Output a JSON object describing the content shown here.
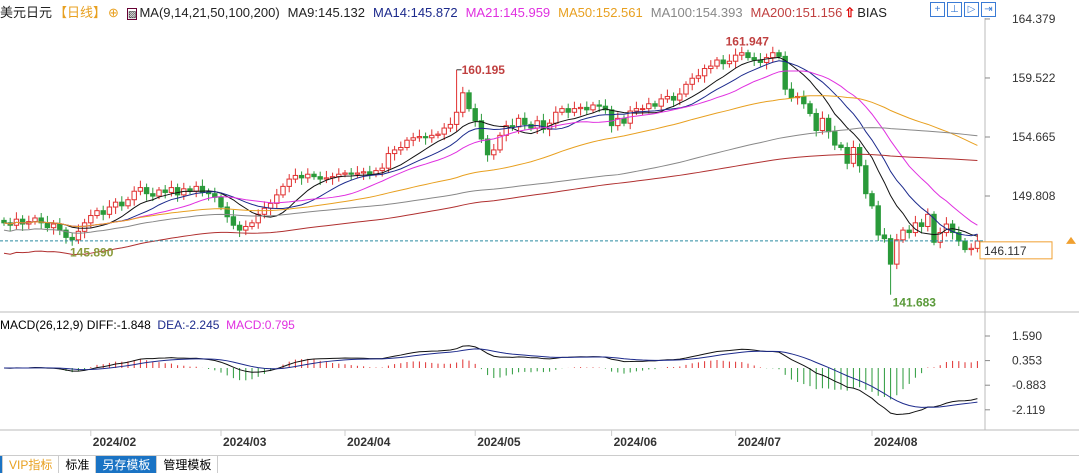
{
  "header": {
    "symbol": "美元日元",
    "period": "【日线】",
    "ma_params": "MA(9,14,21,50,100,200)",
    "ma9": "MA9:145.132",
    "ma14": "MA14:145.872",
    "ma21": "MA21:145.959",
    "ma50": "MA50:152.561",
    "ma100": "MA100:154.393",
    "ma200": "MA200:151.156",
    "bias": "BIAS"
  },
  "macd_header": {
    "params": "MACD(26,12,9)",
    "diff": "DIFF:-1.848",
    "dea": "DEA:-2.245",
    "macd": "MACD:0.795"
  },
  "tabs": [
    "VIP指标",
    "标准",
    "另存模板",
    "管理模板"
  ],
  "colors": {
    "ma9": "#111111",
    "ma14": "#1c2a8c",
    "ma21": "#e030e0",
    "ma50": "#e8a020",
    "ma100": "#888888",
    "ma200": "#b03030",
    "up": "#e03030",
    "down": "#2a9a3a"
  },
  "chart_data": {
    "type": "candlestick",
    "title": "美元日元 日线",
    "price_ticks": [
      "164.379",
      "159.522",
      "154.665",
      "149.808"
    ],
    "ylim": [
      139.5,
      165.5
    ],
    "current_price": "146.117",
    "annotations": {
      "high1": "160.195",
      "high2": "161.947",
      "low1": "141.683",
      "low2": "145.890"
    },
    "macd_ticks": [
      "1.590",
      "0.353",
      "-0.883",
      "-2.119"
    ],
    "x_labels": [
      "2024/02",
      "2024/03",
      "2024/04",
      "2024/05",
      "2024/06",
      "2024/07",
      "2024/08"
    ],
    "month_start_index": [
      14,
      35,
      55,
      76,
      98,
      118,
      140
    ],
    "closes": [
      147.6,
      147.4,
      147.9,
      147.5,
      147.7,
      148.0,
      147.6,
      147.2,
      147.5,
      147.0,
      146.4,
      146.2,
      146.9,
      147.6,
      148.2,
      148.6,
      148.3,
      148.9,
      149.3,
      149.0,
      149.5,
      150.2,
      150.5,
      150.0,
      149.8,
      150.3,
      150.1,
      150.5,
      149.9,
      150.4,
      150.2,
      150.6,
      150.1,
      150.0,
      149.7,
      148.9,
      148.1,
      147.4,
      147.0,
      147.3,
      147.6,
      148.3,
      148.8,
      149.2,
      149.9,
      150.6,
      151.2,
      151.5,
      151.3,
      151.6,
      151.4,
      151.2,
      151.3,
      151.4,
      151.6,
      151.7,
      151.6,
      151.7,
      151.8,
      151.6,
      151.9,
      152.1,
      153.3,
      153.6,
      153.8,
      154.4,
      154.6,
      154.7,
      154.6,
      154.8,
      154.9,
      155.4,
      155.7,
      156.7,
      158.3,
      157.0,
      156.0,
      154.5,
      153.2,
      153.6,
      154.8,
      155.6,
      155.5,
      156.2,
      155.7,
      155.4,
      156.0,
      155.3,
      155.8,
      156.7,
      157.0,
      156.7,
      157.0,
      157.1,
      156.9,
      157.3,
      157.2,
      156.9,
      155.6,
      156.2,
      155.8,
      156.8,
      157.0,
      157.0,
      157.4,
      157.2,
      157.8,
      158.0,
      157.7,
      158.2,
      159.0,
      159.5,
      159.7,
      160.3,
      160.5,
      161.0,
      160.7,
      160.9,
      161.4,
      161.6,
      161.2,
      161.0,
      160.8,
      161.2,
      161.6,
      161.3,
      158.6,
      157.9,
      158.0,
      157.4,
      156.6,
      155.2,
      156.2,
      155.1,
      154.0,
      153.8,
      152.5,
      153.8,
      152.3,
      150.0,
      149.0,
      146.6,
      146.3,
      144.2,
      146.2,
      147.0,
      146.8,
      147.6,
      147.3,
      148.3,
      146.0,
      146.8,
      147.5,
      146.8,
      146.1,
      145.4,
      145.5,
      146.1
    ],
    "special_highs": {
      "73": 160.195,
      "118": 161.947
    },
    "special_lows": {
      "10": 145.89,
      "143": 141.683
    }
  }
}
